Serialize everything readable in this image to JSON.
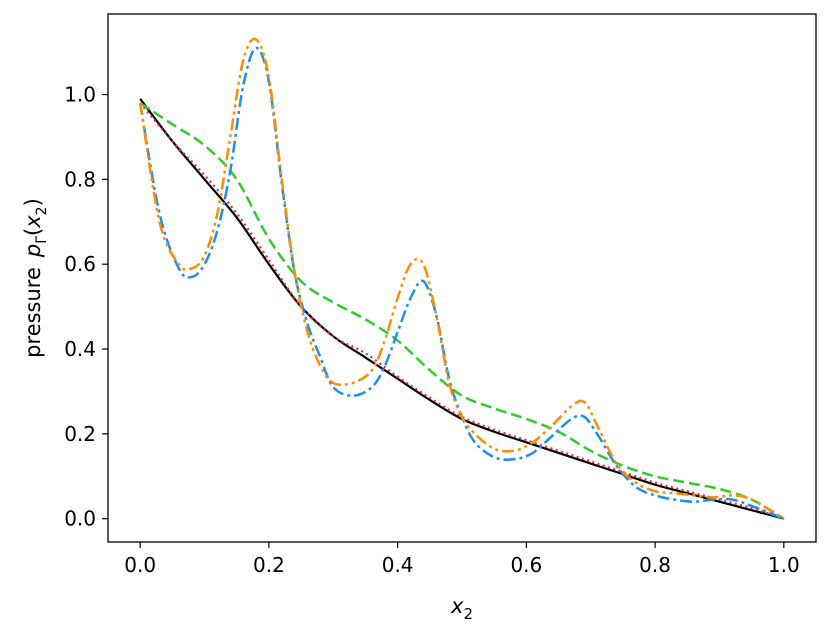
{
  "chart_data": {
    "type": "line",
    "title": "",
    "xlabel": "x",
    "xlabel_sub": "2",
    "ylabel": "pressure",
    "ylabel_math": {
      "p": "p",
      "sub": "Γ",
      "x": "x",
      "xsub": "2"
    },
    "xlim": [
      -0.05,
      1.05
    ],
    "ylim": [
      -0.055,
      1.19
    ],
    "xticks": [
      0.0,
      0.2,
      0.4,
      0.6,
      0.8,
      1.0
    ],
    "yticks": [
      0.0,
      0.2,
      0.4,
      0.6,
      0.8,
      1.0
    ],
    "xtick_labels": [
      "0.0",
      "0.2",
      "0.4",
      "0.6",
      "0.8",
      "1.0"
    ],
    "ytick_labels": [
      "0.0",
      "0.2",
      "0.4",
      "0.6",
      "0.8",
      "1.0"
    ],
    "grid": false,
    "legend": "none",
    "series": [
      {
        "color": "#000000",
        "dash": "solid",
        "width": 2.2,
        "x": [
          0.0,
          0.05,
          0.1,
          0.15,
          0.2,
          0.25,
          0.3,
          0.35,
          0.4,
          0.45,
          0.5,
          0.55,
          0.6,
          0.65,
          0.7,
          0.75,
          0.8,
          0.85,
          0.9,
          0.95,
          1.0
        ],
        "y": [
          0.99,
          0.89,
          0.8,
          0.71,
          0.6,
          0.5,
          0.43,
          0.38,
          0.33,
          0.28,
          0.235,
          0.205,
          0.18,
          0.155,
          0.13,
          0.105,
          0.08,
          0.06,
          0.04,
          0.02,
          0.0
        ]
      },
      {
        "color": "#e0284c",
        "dash": "dotted",
        "width": 2.2,
        "x": [
          0.0,
          0.05,
          0.1,
          0.15,
          0.2,
          0.25,
          0.3,
          0.35,
          0.4,
          0.45,
          0.5,
          0.55,
          0.6,
          0.65,
          0.7,
          0.75,
          0.8,
          0.85,
          0.9,
          0.95,
          1.0
        ],
        "y": [
          0.98,
          0.89,
          0.81,
          0.72,
          0.61,
          0.5,
          0.43,
          0.39,
          0.335,
          0.285,
          0.24,
          0.21,
          0.185,
          0.16,
          0.135,
          0.11,
          0.085,
          0.065,
          0.045,
          0.025,
          0.0
        ]
      },
      {
        "color": "#2ecc2e",
        "dash": "dashed",
        "width": 2.5,
        "x": [
          0.0,
          0.05,
          0.1,
          0.15,
          0.2,
          0.25,
          0.3,
          0.35,
          0.4,
          0.45,
          0.5,
          0.55,
          0.6,
          0.65,
          0.7,
          0.75,
          0.8,
          0.85,
          0.9,
          0.95,
          1.0
        ],
        "y": [
          0.98,
          0.93,
          0.88,
          0.8,
          0.66,
          0.56,
          0.51,
          0.47,
          0.42,
          0.35,
          0.29,
          0.26,
          0.235,
          0.205,
          0.16,
          0.125,
          0.1,
          0.085,
          0.07,
          0.045,
          0.0
        ]
      },
      {
        "color": "#1e8ff0",
        "dash": "dashdot",
        "width": 2.5,
        "x": [
          0.0,
          0.03,
          0.06,
          0.08,
          0.1,
          0.12,
          0.14,
          0.16,
          0.18,
          0.2,
          0.22,
          0.24,
          0.26,
          0.28,
          0.3,
          0.33,
          0.36,
          0.38,
          0.4,
          0.42,
          0.44,
          0.46,
          0.48,
          0.5,
          0.52,
          0.55,
          0.58,
          0.61,
          0.64,
          0.67,
          0.69,
          0.71,
          0.74,
          0.77,
          0.8,
          0.83,
          0.86,
          0.89,
          0.92,
          0.95,
          1.0
        ],
        "y": [
          0.98,
          0.72,
          0.59,
          0.57,
          0.6,
          0.68,
          0.82,
          1.02,
          1.11,
          1.03,
          0.79,
          0.58,
          0.46,
          0.38,
          0.31,
          0.29,
          0.31,
          0.36,
          0.44,
          0.52,
          0.56,
          0.48,
          0.33,
          0.24,
          0.18,
          0.145,
          0.14,
          0.155,
          0.195,
          0.235,
          0.24,
          0.2,
          0.125,
          0.075,
          0.055,
          0.045,
          0.04,
          0.045,
          0.045,
          0.03,
          0.0
        ]
      },
      {
        "color": "#ff8c00",
        "dash": "dashdotdot",
        "width": 2.5,
        "x": [
          0.0,
          0.03,
          0.06,
          0.08,
          0.1,
          0.12,
          0.14,
          0.16,
          0.18,
          0.2,
          0.22,
          0.24,
          0.26,
          0.28,
          0.3,
          0.33,
          0.36,
          0.38,
          0.4,
          0.42,
          0.44,
          0.46,
          0.48,
          0.5,
          0.52,
          0.55,
          0.58,
          0.61,
          0.64,
          0.67,
          0.69,
          0.71,
          0.74,
          0.77,
          0.8,
          0.83,
          0.86,
          0.89,
          0.92,
          0.95,
          1.0
        ],
        "y": [
          0.98,
          0.7,
          0.6,
          0.59,
          0.62,
          0.72,
          0.9,
          1.08,
          1.13,
          1.04,
          0.8,
          0.58,
          0.44,
          0.36,
          0.32,
          0.32,
          0.35,
          0.42,
          0.52,
          0.6,
          0.6,
          0.48,
          0.32,
          0.24,
          0.2,
          0.165,
          0.16,
          0.18,
          0.22,
          0.265,
          0.275,
          0.22,
          0.13,
          0.085,
          0.065,
          0.06,
          0.055,
          0.05,
          0.055,
          0.045,
          0.0
        ]
      }
    ]
  }
}
